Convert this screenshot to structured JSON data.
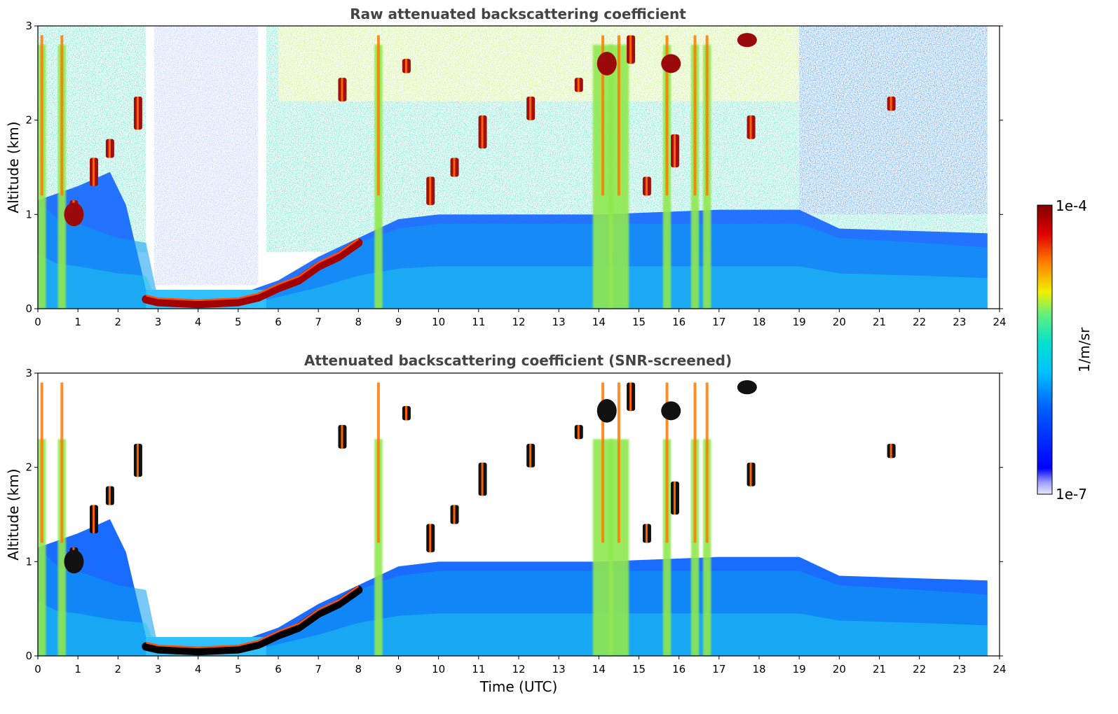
{
  "chart_data": [
    {
      "type": "heatmap",
      "title": "Raw attenuated backscattering coefficient",
      "xlabel": "",
      "ylabel": "Altitude (km)",
      "xlim": [
        0,
        24
      ],
      "ylim": [
        0,
        3
      ],
      "xticks": [
        "0",
        "1",
        "2",
        "3",
        "4",
        "5",
        "6",
        "7",
        "8",
        "9",
        "10",
        "11",
        "12",
        "13",
        "14",
        "15",
        "16",
        "17",
        "18",
        "19",
        "20",
        "21",
        "22",
        "23",
        "24"
      ],
      "yticks": [
        "0",
        "1",
        "2",
        "3"
      ],
      "data_end_time": 23.7,
      "features": {
        "noise_floor_top_km": 0.6,
        "boundary_layer_km": [
          [
            0,
            1.15
          ],
          [
            0.5,
            0.95
          ],
          [
            1,
            0.9
          ],
          [
            2,
            0.75
          ],
          [
            2.7,
            0.7
          ],
          [
            3,
            0.1
          ],
          [
            4,
            0.1
          ],
          [
            5,
            0.1
          ],
          [
            5.5,
            0.15
          ],
          [
            6,
            0.25
          ],
          [
            7,
            0.45
          ],
          [
            8,
            0.7
          ],
          [
            9,
            0.85
          ],
          [
            10,
            0.9
          ],
          [
            12,
            0.9
          ],
          [
            14,
            0.9
          ],
          [
            16,
            0.9
          ],
          [
            18,
            0.9
          ],
          [
            19,
            0.9
          ],
          [
            20,
            0.75
          ],
          [
            22,
            0.7
          ],
          [
            23.7,
            0.65
          ]
        ],
        "aerosol_layer_top_km": [
          [
            0,
            1.15
          ],
          [
            1,
            1.3
          ],
          [
            1.8,
            1.45
          ],
          [
            2.2,
            1.1
          ],
          [
            2.7,
            0.2
          ],
          [
            3,
            0.15
          ],
          [
            5,
            0.15
          ],
          [
            6,
            0.3
          ],
          [
            7,
            0.55
          ],
          [
            8,
            0.75
          ],
          [
            9,
            0.95
          ],
          [
            10,
            1.0
          ],
          [
            14,
            1.0
          ],
          [
            17,
            1.05
          ],
          [
            19,
            1.05
          ],
          [
            20,
            0.85
          ],
          [
            23.7,
            0.8
          ]
        ],
        "low_cloud_base_km": [
          [
            2.7,
            0.1
          ],
          [
            3,
            0.07
          ],
          [
            4,
            0.05
          ],
          [
            5,
            0.07
          ],
          [
            5.5,
            0.12
          ],
          [
            6,
            0.22
          ],
          [
            6.5,
            0.3
          ],
          [
            7,
            0.45
          ],
          [
            7.5,
            0.55
          ],
          [
            8,
            0.7
          ]
        ],
        "precipitation_streaks_hours": [
          0.1,
          0.6,
          8.5,
          14.1,
          14.5,
          15.7,
          16.4,
          16.7
        ],
        "elevated_cloud_patches_hours": [
          0.9,
          1.4,
          1.8,
          2.5,
          7.6,
          9.2,
          9.8,
          10.4,
          11.1,
          12.3,
          13.5,
          14.8,
          15.2,
          15.9,
          17.8,
          21.3
        ]
      }
    },
    {
      "type": "heatmap",
      "title": "Attenuated backscattering coefficient (SNR-screened)",
      "xlabel": "Time (UTC)",
      "ylabel": "Altitude (km)",
      "xlim": [
        0,
        24
      ],
      "ylim": [
        0,
        3
      ],
      "xticks": [
        "0",
        "1",
        "2",
        "3",
        "4",
        "5",
        "6",
        "7",
        "8",
        "9",
        "10",
        "11",
        "12",
        "13",
        "14",
        "15",
        "16",
        "17",
        "18",
        "19",
        "20",
        "21",
        "22",
        "23",
        "24"
      ],
      "yticks": [
        "0",
        "1",
        "2",
        "3"
      ],
      "data_end_time": 23.7,
      "screened": true
    }
  ],
  "colorbar": {
    "label": "1/m/sr",
    "max_label": "1e-4",
    "min_label": "1e-7",
    "scale": "log",
    "colors": [
      "#0000a0",
      "#0000ff",
      "#0060ff",
      "#00b0ff",
      "#00e0e0",
      "#40f0a0",
      "#a0f040",
      "#f0f000",
      "#ffb000",
      "#ff6000",
      "#e00000",
      "#900000"
    ]
  }
}
